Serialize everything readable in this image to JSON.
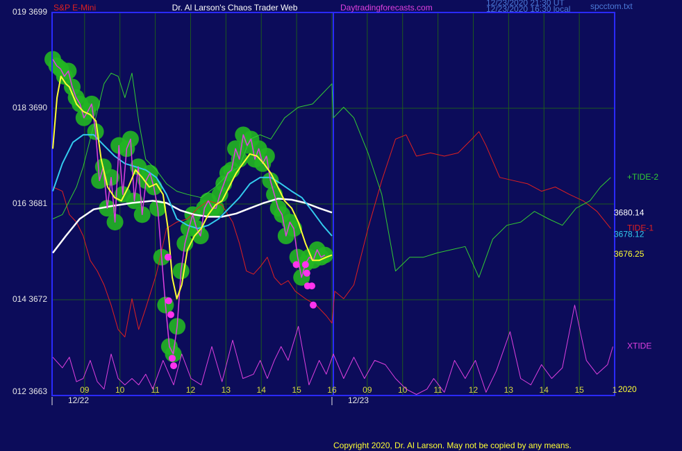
{
  "header": {
    "instrument": "S&P E-Mini",
    "title": "Dr. Al Larson's Chaos Trader Web",
    "website": "Daytradingforecasts.com",
    "timestamp_ut": "12/23/2020 21:30 UT",
    "timestamp_local": "12/23/2020 16:30 local",
    "file": "spcctom.txt"
  },
  "footer": "Copyright 2020, Dr. Al Larson. May not be copied by any means.",
  "chart_data": {
    "type": "line",
    "grid": true,
    "xlim": [
      0.08,
      16
    ],
    "ylim": [
      3663,
      3699
    ],
    "yticks": [
      {
        "value": 3663,
        "label": "012 3663"
      },
      {
        "value": 3672,
        "label": "014 3672"
      },
      {
        "value": 3681,
        "label": "016 3681"
      },
      {
        "value": 3690,
        "label": "018 3690"
      },
      {
        "value": 3699,
        "label": "019 3699"
      }
    ],
    "xticks": [
      {
        "value": 1,
        "label": "09"
      },
      {
        "value": 2,
        "label": "10"
      },
      {
        "value": 3,
        "label": "11"
      },
      {
        "value": 4,
        "label": "12"
      },
      {
        "value": 5,
        "label": "13"
      },
      {
        "value": 6,
        "label": "14"
      },
      {
        "value": 7,
        "label": "15"
      },
      {
        "value": 8,
        "label": "16"
      },
      {
        "value": 9,
        "label": "09"
      },
      {
        "value": 10,
        "label": "10"
      },
      {
        "value": 11,
        "label": "11"
      },
      {
        "value": 12,
        "label": "12"
      },
      {
        "value": 13,
        "label": "13"
      },
      {
        "value": 14,
        "label": "14"
      },
      {
        "value": 15,
        "label": "15"
      },
      {
        "value": 16,
        "label": "1"
      }
    ],
    "date_ticks": [
      {
        "value": 0.08,
        "label": "12/22"
      },
      {
        "value": 8,
        "label": "12/23"
      }
    ],
    "year_label": "2020",
    "series": [
      {
        "name": "TIDE-1",
        "color": "#e02020",
        "x": [
          0.1,
          0.37,
          0.57,
          0.77,
          0.96,
          1.16,
          1.36,
          1.55,
          1.75,
          1.95,
          2.14,
          2.34,
          2.53,
          2.73,
          3.03,
          3.32,
          3.61,
          3.91,
          4.2,
          4.5,
          4.89,
          5.19,
          5.38,
          5.58,
          5.78,
          5.97,
          6.17,
          6.37,
          6.56,
          6.76,
          6.96,
          7.25,
          7.55,
          7.84,
          8.0,
          8.08,
          8.33,
          8.62,
          9.02,
          9.41,
          9.8,
          10.1,
          10.39,
          10.79,
          11.18,
          11.57,
          11.96,
          12.16,
          12.36,
          12.75,
          13.14,
          13.54,
          13.93,
          14.32,
          14.72,
          15.11,
          15.5,
          15.89
        ],
        "values": [
          3682.6,
          3682.2,
          3680.0,
          3679.3,
          3678.0,
          3675.7,
          3674.7,
          3673.4,
          3671.5,
          3669.2,
          3668.5,
          3672.1,
          3669.2,
          3671.2,
          3674.4,
          3678.7,
          3679.3,
          3679.6,
          3680.6,
          3681.3,
          3680.9,
          3679.3,
          3677.3,
          3674.7,
          3674.4,
          3675.1,
          3676.0,
          3674.1,
          3673.4,
          3673.8,
          3672.8,
          3672.1,
          3671.5,
          3670.5,
          3669.8,
          3672.8,
          3672.1,
          3673.4,
          3678.7,
          3683.2,
          3687.1,
          3687.5,
          3685.5,
          3685.8,
          3685.5,
          3685.8,
          3687.1,
          3687.8,
          3686.5,
          3683.5,
          3683.2,
          3682.9,
          3682.2,
          3682.6,
          3681.9,
          3681.3,
          3680.3,
          3678.7
        ]
      },
      {
        "name": "+TIDE-2",
        "color": "#33cc33",
        "x": [
          0.1,
          0.37,
          0.57,
          0.77,
          0.96,
          1.16,
          1.36,
          1.55,
          1.75,
          1.95,
          2.14,
          2.34,
          2.53,
          2.73,
          3.03,
          3.32,
          3.61,
          3.91,
          4.3,
          4.7,
          5.09,
          5.38,
          5.68,
          5.97,
          6.27,
          6.66,
          7.05,
          7.45,
          7.74,
          8.0,
          8.04,
          8.33,
          8.62,
          9.02,
          9.41,
          9.8,
          10.2,
          10.59,
          10.98,
          11.38,
          11.77,
          12.16,
          12.55,
          12.95,
          13.34,
          13.73,
          14.13,
          14.52,
          14.91,
          15.3,
          15.6,
          15.89
        ],
        "values": [
          3679.6,
          3680.0,
          3681.3,
          3682.6,
          3684.5,
          3687.1,
          3689.7,
          3692.3,
          3693.3,
          3693.0,
          3691.0,
          3693.3,
          3688.8,
          3685.2,
          3684.2,
          3682.9,
          3682.2,
          3681.9,
          3681.6,
          3682.6,
          3683.9,
          3684.5,
          3687.1,
          3687.5,
          3687.1,
          3689.1,
          3690.1,
          3690.4,
          3691.4,
          3692.3,
          3689.1,
          3690.1,
          3689.1,
          3685.8,
          3681.9,
          3674.7,
          3676.0,
          3676.0,
          3676.4,
          3676.7,
          3677.0,
          3674.1,
          3677.7,
          3679.0,
          3679.3,
          3680.3,
          3679.6,
          3679.0,
          3680.6,
          3681.3,
          3682.6,
          3683.5
        ]
      },
      {
        "name": "XTIDE",
        "color": "#e040e0",
        "x": [
          0.1,
          0.37,
          0.57,
          0.77,
          0.96,
          1.16,
          1.36,
          1.55,
          1.75,
          1.95,
          2.14,
          2.34,
          2.53,
          2.73,
          2.93,
          3.22,
          3.52,
          3.75,
          4.01,
          4.3,
          4.6,
          4.89,
          5.19,
          5.48,
          5.78,
          5.97,
          6.17,
          6.37,
          6.56,
          6.76,
          7.05,
          7.35,
          7.64,
          7.84,
          8.04,
          8.33,
          8.62,
          8.92,
          9.21,
          9.51,
          9.8,
          10.1,
          10.39,
          10.69,
          10.88,
          11.18,
          11.47,
          11.77,
          12.06,
          12.36,
          12.65,
          13.04,
          13.34,
          13.63,
          13.93,
          14.22,
          14.52,
          14.87,
          15.2,
          15.5,
          15.8,
          15.95
        ],
        "values": [
          3666.6,
          3665.6,
          3666.6,
          3664.3,
          3664.6,
          3666.3,
          3664.3,
          3663.6,
          3666.9,
          3664.6,
          3664.0,
          3664.6,
          3664.0,
          3665.0,
          3663.6,
          3666.3,
          3664.0,
          3666.9,
          3664.6,
          3664.0,
          3667.6,
          3664.3,
          3668.2,
          3664.6,
          3665.0,
          3666.3,
          3664.6,
          3666.3,
          3667.6,
          3666.3,
          3669.5,
          3664.0,
          3666.3,
          3665.0,
          3666.9,
          3664.6,
          3666.6,
          3664.6,
          3666.3,
          3665.9,
          3664.6,
          3663.6,
          3663.1,
          3663.6,
          3664.6,
          3663.3,
          3666.3,
          3664.6,
          3666.3,
          3663.3,
          3665.3,
          3669.0,
          3664.6,
          3664.0,
          3665.9,
          3664.6,
          3665.6,
          3671.5,
          3666.3,
          3665.0,
          3665.9,
          3667.6
        ]
      },
      {
        "color": "#ffffff",
        "width": 2.5,
        "last": 3680.14,
        "x": [
          0.1,
          0.47,
          0.86,
          1.26,
          1.75,
          2.34,
          2.93,
          3.32,
          3.71,
          4.11,
          4.5,
          4.89,
          5.29,
          5.68,
          6.07,
          6.47,
          6.86,
          7.25,
          7.64,
          8.0
        ],
        "values": [
          3676.4,
          3678.0,
          3679.6,
          3680.5,
          3680.8,
          3681.1,
          3681.3,
          3681.1,
          3680.4,
          3680.0,
          3679.8,
          3679.8,
          3680.1,
          3680.6,
          3681.1,
          3681.5,
          3681.4,
          3681.1,
          3680.6,
          3680.2
        ]
      },
      {
        "color": "#33ccee",
        "width": 2,
        "last": 3678.12,
        "x": [
          0.1,
          0.37,
          0.67,
          0.96,
          1.26,
          1.55,
          1.85,
          2.14,
          2.44,
          2.73,
          3.03,
          3.32,
          3.61,
          3.91,
          4.2,
          4.5,
          4.79,
          5.09,
          5.38,
          5.68,
          5.97,
          6.27,
          6.56,
          6.86,
          7.15,
          7.45,
          7.74,
          8.0
        ],
        "values": [
          3682.2,
          3684.8,
          3686.8,
          3687.5,
          3687.5,
          3686.5,
          3685.5,
          3684.8,
          3684.5,
          3684.2,
          3683.5,
          3681.9,
          3679.6,
          3679.0,
          3678.7,
          3679.0,
          3679.6,
          3680.6,
          3681.6,
          3682.9,
          3683.5,
          3683.5,
          3682.9,
          3682.2,
          3681.6,
          3680.3,
          3679.0,
          3678.0
        ]
      },
      {
        "color": "#e040e0",
        "width": 1.5,
        "halo_color": "#22b522",
        "x": [
          0.1,
          0.21,
          0.32,
          0.43,
          0.54,
          0.65,
          0.76,
          0.87,
          0.98,
          1.09,
          1.2,
          1.31,
          1.42,
          1.53,
          1.64,
          1.75,
          1.86,
          1.97,
          2.08,
          2.19,
          2.3,
          2.41,
          2.52,
          2.63,
          2.74,
          2.85,
          2.96,
          3.07,
          3.18,
          3.29,
          3.4,
          3.51,
          3.62,
          3.73,
          3.84,
          3.95,
          4.06,
          4.17,
          4.28,
          4.39,
          4.5,
          4.61,
          4.72,
          4.83,
          4.94,
          5.05,
          5.16,
          5.27,
          5.38,
          5.49,
          5.6,
          5.71,
          5.82,
          5.93,
          6.04,
          6.15,
          6.26,
          6.37,
          6.48,
          6.59,
          6.7,
          6.81,
          6.92,
          7.03,
          7.14,
          7.25,
          7.36,
          7.47,
          7.58,
          7.69,
          7.8
        ],
        "values": [
          3694.6,
          3694.0,
          3693.7,
          3693.0,
          3693.5,
          3692.0,
          3691.0,
          3690.4,
          3689.1,
          3689.7,
          3690.4,
          3687.8,
          3683.2,
          3684.5,
          3680.6,
          3683.5,
          3679.3,
          3686.5,
          3681.9,
          3686.2,
          3687.1,
          3681.3,
          3684.5,
          3680.0,
          3683.2,
          3683.9,
          3682.6,
          3680.6,
          3676.0,
          3671.5,
          3667.6,
          3666.9,
          3669.5,
          3674.7,
          3677.3,
          3678.7,
          3680.0,
          3678.7,
          3678.0,
          3680.6,
          3681.3,
          3680.6,
          3680.6,
          3681.9,
          3682.9,
          3683.9,
          3684.2,
          3686.2,
          3685.2,
          3687.5,
          3686.5,
          3687.1,
          3685.2,
          3686.2,
          3684.8,
          3685.5,
          3683.2,
          3681.9,
          3680.6,
          3680.0,
          3678.0,
          3679.3,
          3678.7,
          3676.0,
          3674.1,
          3675.4,
          3676.0,
          3675.7,
          3676.7,
          3676.0,
          3676.2
        ]
      },
      {
        "color": "#ffff33",
        "width": 2,
        "last": 3676.25,
        "x": [
          0.1,
          0.22,
          0.33,
          0.47,
          0.57,
          0.77,
          0.96,
          1.16,
          1.32,
          1.47,
          1.65,
          1.85,
          2.04,
          2.24,
          2.44,
          2.63,
          2.83,
          3.03,
          3.22,
          3.36,
          3.48,
          3.61,
          3.75,
          3.91,
          4.11,
          4.3,
          4.5,
          4.7,
          4.89,
          5.09,
          5.29,
          5.48,
          5.68,
          5.88,
          6.07,
          6.27,
          6.47,
          6.66,
          6.86,
          7.05,
          7.25,
          7.45,
          7.64,
          7.84,
          8.0
        ],
        "values": [
          3686.2,
          3691.0,
          3693.0,
          3692.3,
          3692.0,
          3690.4,
          3689.7,
          3689.4,
          3688.8,
          3685.2,
          3682.6,
          3681.6,
          3681.3,
          3682.6,
          3684.2,
          3683.5,
          3682.6,
          3682.9,
          3681.9,
          3678.7,
          3674.1,
          3672.1,
          3673.4,
          3676.7,
          3678.0,
          3678.7,
          3680.0,
          3680.9,
          3681.3,
          3682.6,
          3683.9,
          3684.8,
          3685.7,
          3685.5,
          3684.8,
          3683.9,
          3682.6,
          3681.3,
          3680.6,
          3679.3,
          3677.3,
          3675.7,
          3675.7,
          3676.0,
          3676.2
        ]
      },
      {
        "color": "#ff33ee",
        "style": "dots",
        "x": [
          3.36,
          3.38,
          3.44,
          3.48,
          3.52,
          6.99,
          7.25,
          7.29,
          7.31,
          7.43,
          7.47
        ],
        "values": [
          3676.0,
          3671.9,
          3670.6,
          3666.5,
          3665.8,
          3675.3,
          3675.3,
          3674.5,
          3673.3,
          3673.3,
          3671.5
        ]
      }
    ]
  }
}
